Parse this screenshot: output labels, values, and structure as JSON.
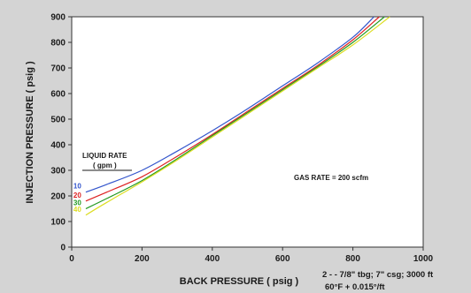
{
  "chart_data": {
    "type": "line",
    "xlabel": "BACK PRESSURE ( psig )",
    "ylabel": "INJECTION PRESSURE ( psig )",
    "xlim": [
      0,
      1000
    ],
    "ylim": [
      0,
      900
    ],
    "x_ticks": [
      "0",
      "200",
      "400",
      "600",
      "800",
      "1000"
    ],
    "y_ticks": [
      "0",
      "100",
      "200",
      "300",
      "400",
      "500",
      "600",
      "700",
      "800",
      "900"
    ],
    "grid": false,
    "legend_title": "LIQUID RATE",
    "legend_unit": "( gpm )",
    "series": [
      {
        "name": "10",
        "color": "#3355cc",
        "x": [
          40,
          100,
          200,
          300,
          400,
          500,
          600,
          700,
          800,
          860
        ],
        "y": [
          215,
          245,
          300,
          375,
          455,
          540,
          630,
          720,
          820,
          900
        ]
      },
      {
        "name": "20",
        "color": "#dd2222",
        "x": [
          40,
          100,
          200,
          300,
          400,
          500,
          600,
          700,
          800,
          875
        ],
        "y": [
          180,
          215,
          275,
          355,
          440,
          530,
          620,
          710,
          810,
          900
        ]
      },
      {
        "name": "30",
        "color": "#229922",
        "x": [
          40,
          100,
          200,
          300,
          400,
          500,
          600,
          700,
          800,
          890
        ],
        "y": [
          150,
          190,
          260,
          345,
          435,
          525,
          615,
          705,
          800,
          900
        ]
      },
      {
        "name": "40",
        "color": "#dddd22",
        "x": [
          40,
          100,
          200,
          300,
          400,
          500,
          600,
          700,
          800,
          905
        ],
        "y": [
          125,
          175,
          255,
          340,
          430,
          520,
          610,
          700,
          790,
          900
        ]
      }
    ],
    "annotations": {
      "gas_rate": "GAS RATE = 200 scfm",
      "line1": "2 - - 7/8\" tbg; 7\" csg; 3000 ft",
      "line2": "60°F + 0.015°/ft"
    }
  }
}
